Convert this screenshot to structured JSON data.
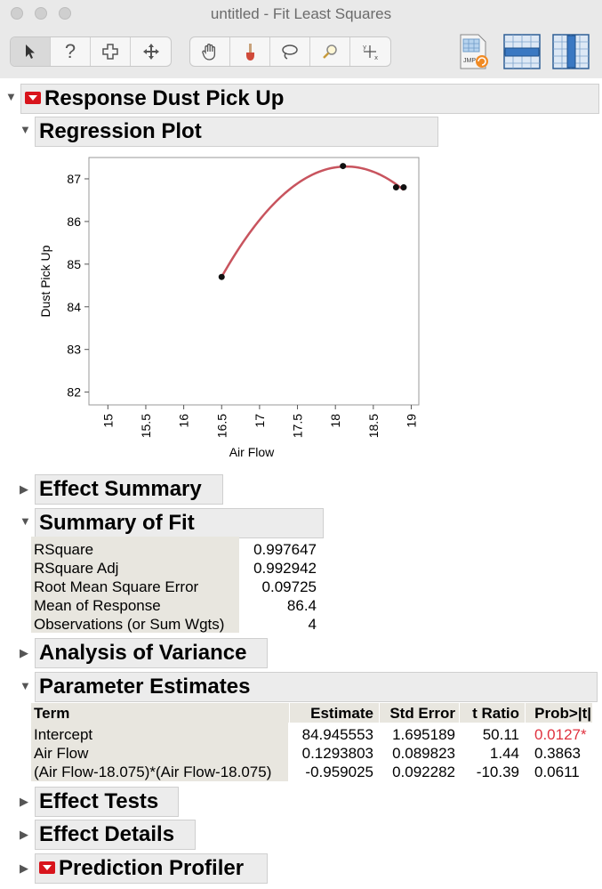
{
  "window": {
    "title": "untitled - Fit Least Squares"
  },
  "toolbar": {
    "tools": [
      {
        "name": "arrow-tool-icon",
        "glyph": "➤"
      },
      {
        "name": "help-tool-icon",
        "glyph": "?"
      },
      {
        "name": "selection-tool-icon",
        "glyph": "✜"
      },
      {
        "name": "scroller-tool-icon",
        "glyph": "✥"
      },
      {
        "name": "grabber-tool-icon",
        "glyph": "✋"
      },
      {
        "name": "brush-tool-icon",
        "glyph": "🖌"
      },
      {
        "name": "lasso-tool-icon",
        "glyph": "➰"
      },
      {
        "name": "magnifier-tool-icon",
        "glyph": "🔍"
      },
      {
        "name": "crosshair-tool-icon",
        "glyph": "✛"
      }
    ],
    "jmp_label": "JMP"
  },
  "report": {
    "response_title": "Response Dust Pick Up",
    "regression_plot_title": "Regression Plot",
    "effect_summary_title": "Effect Summary",
    "summary_of_fit_title": "Summary of Fit",
    "analysis_of_variance_title": "Analysis of Variance",
    "parameter_estimates_title": "Parameter Estimates",
    "effect_tests_title": "Effect Tests",
    "effect_details_title": "Effect Details",
    "prediction_profiler_title": "Prediction Profiler"
  },
  "summary_of_fit": {
    "rows": [
      {
        "label": "RSquare",
        "value": "0.997647"
      },
      {
        "label": "RSquare Adj",
        "value": "0.992942"
      },
      {
        "label": "Root Mean Square Error",
        "value": "0.09725"
      },
      {
        "label": "Mean of Response",
        "value": "86.4"
      },
      {
        "label": "Observations (or Sum Wgts)",
        "value": "4"
      }
    ]
  },
  "parameter_estimates": {
    "headers": [
      "Term",
      "Estimate",
      "Std Error",
      "t Ratio",
      "Prob>|t|"
    ],
    "rows": [
      {
        "term": "Intercept",
        "estimate": "84.945553",
        "std_error": "1.695189",
        "t_ratio": "50.11",
        "prob": "0.0127*"
      },
      {
        "term": "Air Flow",
        "estimate": "0.1293803",
        "std_error": "0.089823",
        "t_ratio": "1.44",
        "prob": "0.3863"
      },
      {
        "term": "(Air Flow-18.075)*(Air Flow-18.075)",
        "estimate": "-0.959025",
        "std_error": "0.092282",
        "t_ratio": "-10.39",
        "prob": "0.0611"
      }
    ],
    "significant_color": "#e0323f"
  },
  "chart_data": {
    "type": "scatter",
    "xlabel": "Air Flow",
    "ylabel": "Dust Pick Up",
    "xlim": [
      14.75,
      19.1
    ],
    "ylim": [
      81.7,
      87.5
    ],
    "x_ticks": [
      "15",
      "15.5",
      "16",
      "16.5",
      "17",
      "17.5",
      "18",
      "18.5",
      "19"
    ],
    "x_tick_values": [
      15,
      15.5,
      16,
      16.5,
      17,
      17.5,
      18,
      18.5,
      19
    ],
    "y_ticks": [
      "82",
      "83",
      "84",
      "85",
      "86",
      "87"
    ],
    "y_tick_values": [
      82,
      83,
      84,
      85,
      86,
      87
    ],
    "points": [
      {
        "x": 16.5,
        "y": 84.7
      },
      {
        "x": 18.1,
        "y": 87.3
      },
      {
        "x": 18.8,
        "y": 86.8
      },
      {
        "x": 18.9,
        "y": 86.8
      }
    ],
    "fit": {
      "intercept": 84.945553,
      "linear": 0.1293803,
      "quadratic": -0.959025,
      "center": 18.075,
      "x_range": [
        16.5,
        18.9
      ]
    },
    "fit_color": "#c8545e",
    "point_color": "#111111"
  }
}
